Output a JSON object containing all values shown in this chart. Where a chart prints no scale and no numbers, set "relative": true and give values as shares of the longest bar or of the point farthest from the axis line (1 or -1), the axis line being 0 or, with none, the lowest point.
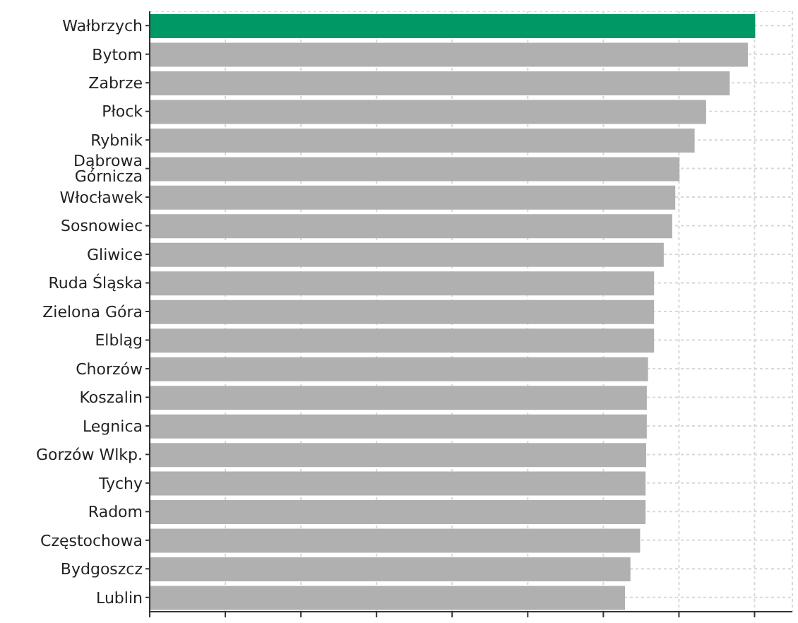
{
  "chart_data": {
    "type": "bar",
    "orientation": "horizontal",
    "relative": true,
    "grid": true,
    "categories": [
      "Wałbrzych",
      "Bytom",
      "Zabrze",
      "Płock",
      "Rybnik",
      "Dąbrowa Górnicza",
      "Włocławek",
      "Sosnowiec",
      "Gliwice",
      "Ruda Śląska",
      "Zielona Góra",
      "Elbląg",
      "Chorzów",
      "Koszalin",
      "Legnica",
      "Gorzów Wlkp.",
      "Tychy",
      "Radom",
      "Częstochowa",
      "Bydgoszcz",
      "Lublin"
    ],
    "values": [
      1,
      0.988,
      0.958,
      0.919,
      0.9,
      0.875,
      0.868,
      0.863,
      0.849,
      0.833,
      0.833,
      0.833,
      0.823,
      0.821,
      0.821,
      0.82,
      0.819,
      0.819,
      0.81,
      0.794,
      0.785
    ],
    "colors": [
      "#009966",
      "#b0b0b0",
      "#b0b0b0",
      "#b0b0b0",
      "#b0b0b0",
      "#b0b0b0",
      "#b0b0b0",
      "#b0b0b0",
      "#b0b0b0",
      "#b0b0b0",
      "#b0b0b0",
      "#b0b0b0",
      "#b0b0b0",
      "#b0b0b0",
      "#b0b0b0",
      "#b0b0b0",
      "#b0b0b0",
      "#b0b0b0",
      "#b0b0b0",
      "#b0b0b0",
      "#b0b0b0"
    ]
  }
}
